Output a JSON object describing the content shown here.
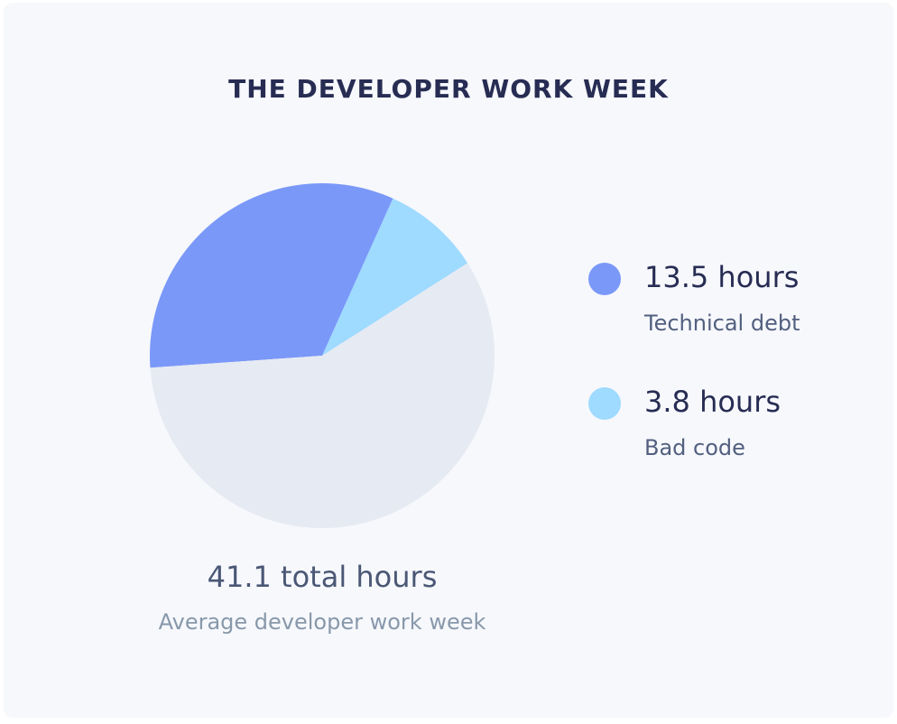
{
  "chart_data": {
    "type": "pie",
    "title": "THE DEVELOPER WORK WEEK",
    "total": 41.1,
    "total_label": "41.1 total hours",
    "total_caption": "Average developer work week",
    "unit": "hours",
    "slices": [
      {
        "name": "Technical debt",
        "value": 13.5,
        "value_label": "13.5 hours",
        "color": "#7a98f8"
      },
      {
        "name": "Bad code",
        "value": 3.8,
        "value_label": "3.8 hours",
        "color": "#9fdaff"
      },
      {
        "name": "",
        "value": 23.8,
        "value_label": "",
        "color": "#e6eaf2"
      }
    ],
    "legend_position": "right"
  },
  "colors": {
    "background": "#f6f8fc",
    "title": "#272c53"
  }
}
